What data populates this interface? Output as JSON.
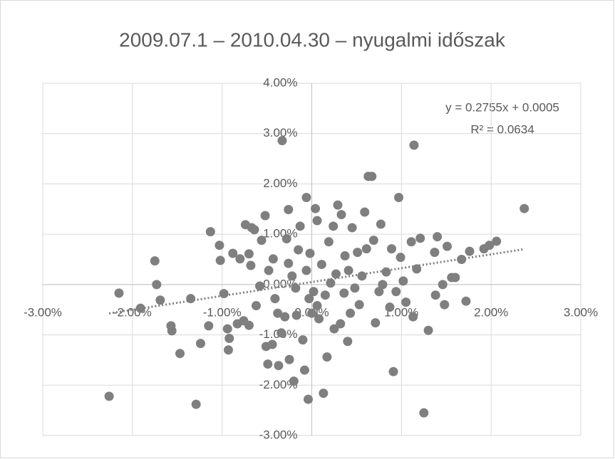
{
  "chart_data": {
    "type": "scatter",
    "title": "2009.07.1 – 2010.04.30 – nyugalmi időszak",
    "color": "#7f7f7f",
    "grid": true,
    "xlim": [
      -0.03,
      0.03
    ],
    "ylim": [
      -0.03,
      0.04
    ],
    "xticks": [
      {
        "value": -0.03,
        "label": "-3.00%"
      },
      {
        "value": -0.02,
        "label": "-2.00%"
      },
      {
        "value": -0.01,
        "label": "-1.00%"
      },
      {
        "value": 0,
        "label": "0.00%"
      },
      {
        "value": 0.01,
        "label": "1.00%"
      },
      {
        "value": 0.02,
        "label": "2.00%"
      },
      {
        "value": 0.03,
        "label": "3.00%"
      }
    ],
    "yticks": [
      {
        "value": -0.03,
        "label": "-3.00%"
      },
      {
        "value": -0.02,
        "label": "-2.00%"
      },
      {
        "value": -0.01,
        "label": "-1.00%"
      },
      {
        "value": 0,
        "label": "0.00%"
      },
      {
        "value": 0.01,
        "label": "1.00%"
      },
      {
        "value": 0.02,
        "label": "2.00%"
      },
      {
        "value": 0.03,
        "label": "3.00%"
      },
      {
        "value": 0.04,
        "label": "4.00%"
      }
    ],
    "trendline": {
      "slope": 0.2755,
      "intercept": 0.0005,
      "equation": "y = 0.2755x + 0.0005",
      "r_squared": 0.0634,
      "r_squared_label": "R² = 0.0634"
    },
    "x": [
      -0.0226,
      -0.0215,
      -0.0175,
      -0.0173,
      -0.0169,
      -0.0191,
      -0.0157,
      -0.0156,
      -0.0147,
      -0.0129,
      -0.0135,
      -0.0124,
      -0.0115,
      -0.0113,
      -0.0103,
      -0.0102,
      -0.0098,
      -0.0094,
      -0.0092,
      -0.0093,
      -0.0088,
      -0.0083,
      -0.008,
      -0.0076,
      -0.0074,
      -0.007,
      -0.007,
      -0.0068,
      -0.0067,
      -0.0064,
      -0.0062,
      -0.0058,
      -0.0056,
      -0.0052,
      -0.0051,
      -0.0049,
      -0.0048,
      -0.0044,
      -0.0043,
      -0.0041,
      -0.0038,
      -0.0037,
      -0.0034,
      -0.0033,
      -0.003,
      -0.0028,
      -0.0026,
      -0.0026,
      -0.0025,
      -0.0022,
      -0.002,
      -0.0018,
      -0.0017,
      -0.0015,
      -0.0013,
      -0.001,
      -0.0008,
      -0.0006,
      -0.0006,
      -0.0004,
      -0.0003,
      -0.0002,
      0,
      0.0002,
      0.0004,
      0.0006,
      0.0006,
      0.0008,
      0.0011,
      0.0013,
      0.0015,
      0.0017,
      0.0019,
      0.0021,
      0.0024,
      0.0025,
      0.0027,
      0.0029,
      0.0032,
      0.0033,
      0.0036,
      0.0037,
      0.004,
      0.0041,
      0.0043,
      0.0045,
      0.0048,
      0.0051,
      0.0053,
      0.0056,
      0.0059,
      0.0061,
      0.0063,
      0.0067,
      0.0069,
      0.0071,
      0.0075,
      0.0077,
      0.0079,
      0.0083,
      0.0087,
      0.0089,
      0.0091,
      0.0094,
      0.0097,
      0.0099,
      0.0102,
      0.0105,
      0.0111,
      0.0113,
      0.0114,
      0.0117,
      0.0121,
      0.0125,
      0.013,
      0.0137,
      0.014,
      0.0138,
      0.0146,
      0.0148,
      0.0151,
      0.0156,
      0.016,
      0.0167,
      0.0172,
      0.0176,
      0.0192,
      0.0198,
      0.0206,
      0.0237
    ],
    "y": [
      -0.0222,
      -0.0017,
      0.0047,
      0,
      -0.0031,
      -0.0047,
      -0.0082,
      -0.0092,
      -0.0137,
      -0.0238,
      -0.0028,
      -0.0117,
      -0.0082,
      0.0105,
      0.0078,
      0.0048,
      -0.0018,
      -0.0088,
      -0.0107,
      -0.013,
      0.0062,
      -0.0078,
      0.0051,
      -0.0072,
      0.0119,
      -0.0081,
      0.0061,
      0.0038,
      0.0113,
      0.0109,
      -0.0042,
      -0.0003,
      0.0088,
      0.0137,
      -0.0123,
      -0.0158,
      0.0028,
      -0.0119,
      0.0051,
      -0.0028,
      -0.0057,
      -0.0161,
      -0.0096,
      0.0286,
      -0.0064,
      0.0091,
      0.0149,
      0.0042,
      -0.0149,
      0.0017,
      -0.0192,
      -0.0007,
      -0.0061,
      0.0069,
      0.0116,
      -0.011,
      -0.017,
      0.0173,
      0.0028,
      -0.0228,
      -0.0028,
      0.0062,
      -0.0057,
      -0.0014,
      0.0151,
      0.0127,
      -0.0042,
      -0.0068,
      0.004,
      -0.0216,
      -0.0021,
      -0.0144,
      0.0085,
      0.0003,
      0.0116,
      -0.0088,
      0.0021,
      0.0158,
      -0.0078,
      0.0139,
      -0.0017,
      0.0057,
      -0.0113,
      0.0028,
      -0.0057,
      0.0113,
      -0.0007,
      0.0064,
      -0.004,
      0.0017,
      0.0144,
      0.0071,
      0.0215,
      0.0215,
      0.0088,
      -0.0076,
      -0.0014,
      0.012,
      0,
      0.0025,
      -0.0045,
      0.0071,
      -0.0173,
      -0.0014,
      0.0173,
      0.0054,
      0.0007,
      -0.0035,
      0.0085,
      -0.0064,
      0.0277,
      0.0031,
      0.0092,
      -0.0255,
      -0.0091,
      0.0064,
      0.0095,
      -0.0021,
      0,
      -0.004,
      0.0076,
      0.0014,
      0.0014,
      0.005,
      -0.0033,
      0.0066,
      0.0071,
      0.0078,
      0.0086,
      0.0151
    ]
  }
}
